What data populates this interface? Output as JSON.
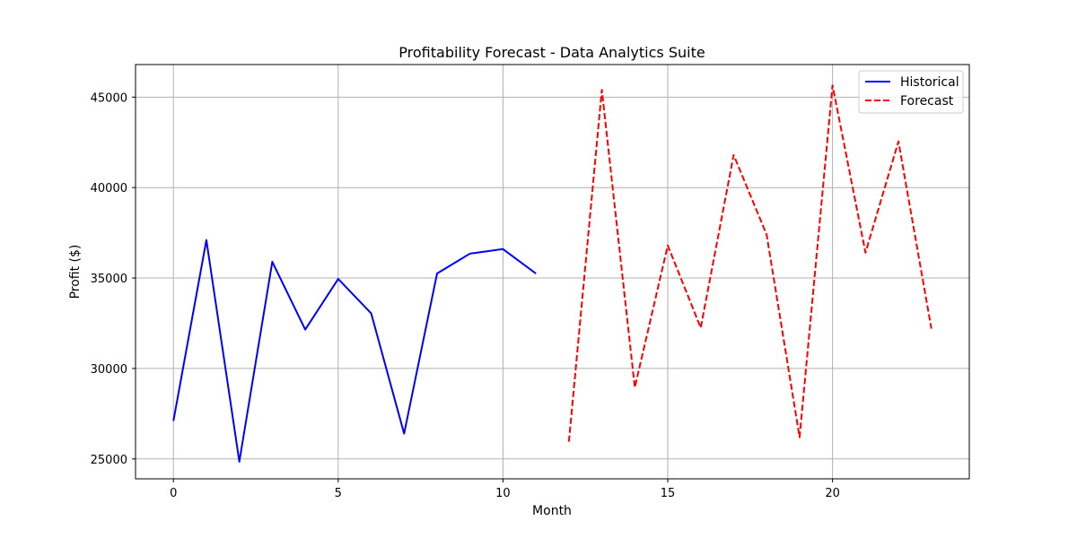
{
  "chart_data": {
    "type": "line",
    "title": "Profitability Forecast - Data Analytics Suite",
    "xlabel": "Month",
    "ylabel": "Profit ($)",
    "xlim": [
      -1.15,
      24.15
    ],
    "ylim": [
      23900,
      46800
    ],
    "xticks": [
      0,
      5,
      10,
      15,
      20
    ],
    "yticks": [
      25000,
      30000,
      35000,
      40000,
      45000
    ],
    "grid": true,
    "legend_position": "top-right",
    "series": [
      {
        "name": "Historical",
        "color": "#0000ff",
        "style": "solid",
        "x": [
          0,
          1,
          2,
          3,
          4,
          5,
          6,
          7,
          8,
          9,
          10,
          11
        ],
        "values": [
          27100,
          37100,
          24850,
          35900,
          32150,
          34950,
          33050,
          26400,
          35250,
          36350,
          36600,
          35250
        ]
      },
      {
        "name": "Forecast",
        "color": "#ff0000",
        "style": "dashed",
        "x": [
          12,
          13,
          14,
          15,
          16,
          17,
          18,
          19,
          20,
          21,
          22,
          23
        ],
        "values": [
          25950,
          45400,
          28950,
          36800,
          32250,
          41800,
          37400,
          26200,
          45650,
          36400,
          42550,
          32200
        ]
      }
    ]
  }
}
